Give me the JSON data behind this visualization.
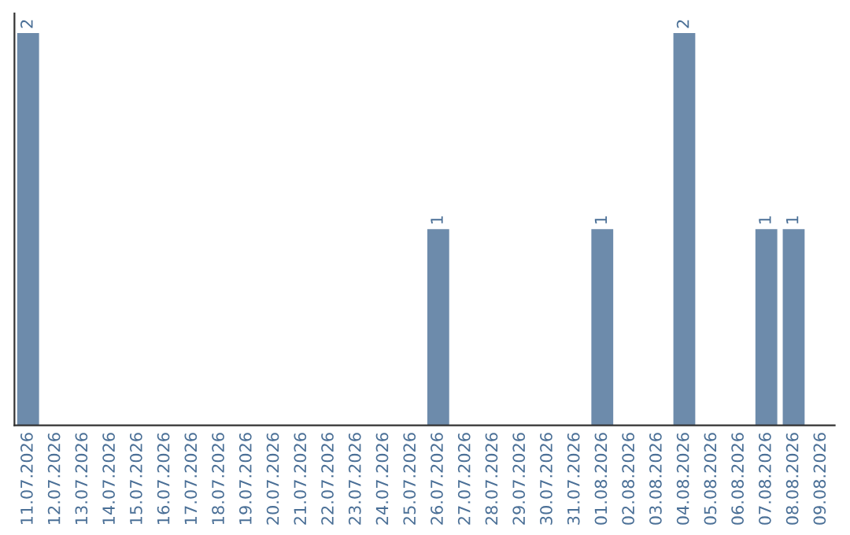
{
  "chart_data": {
    "type": "bar",
    "categories": [
      "11.07.2026",
      "12.07.2026",
      "13.07.2026",
      "14.07.2026",
      "15.07.2026",
      "16.07.2026",
      "17.07.2026",
      "18.07.2026",
      "19.07.2026",
      "20.07.2026",
      "21.07.2026",
      "22.07.2026",
      "23.07.2026",
      "24.07.2026",
      "25.07.2026",
      "26.07.2026",
      "27.07.2026",
      "28.07.2026",
      "29.07.2026",
      "30.07.2026",
      "31.07.2026",
      "01.08.2026",
      "02.08.2026",
      "03.08.2026",
      "04.08.2026",
      "05.08.2026",
      "06.08.2026",
      "07.08.2026",
      "08.08.2026",
      "09.08.2026"
    ],
    "values": [
      2,
      0,
      0,
      0,
      0,
      0,
      0,
      0,
      0,
      0,
      0,
      0,
      0,
      0,
      0,
      1,
      0,
      0,
      0,
      0,
      0,
      1,
      0,
      0,
      2,
      0,
      0,
      1,
      1,
      0
    ],
    "color": "#6d8bab",
    "ylim": [
      0,
      2.1
    ],
    "tick_labels": "x",
    "value_labels": [
      "2",
      null,
      null,
      null,
      null,
      null,
      null,
      null,
      null,
      null,
      null,
      null,
      null,
      null,
      null,
      "1",
      null,
      null,
      null,
      null,
      null,
      "1",
      null,
      null,
      "2",
      null,
      null,
      "1",
      "1",
      null
    ],
    "grid": false,
    "legend": false
  }
}
